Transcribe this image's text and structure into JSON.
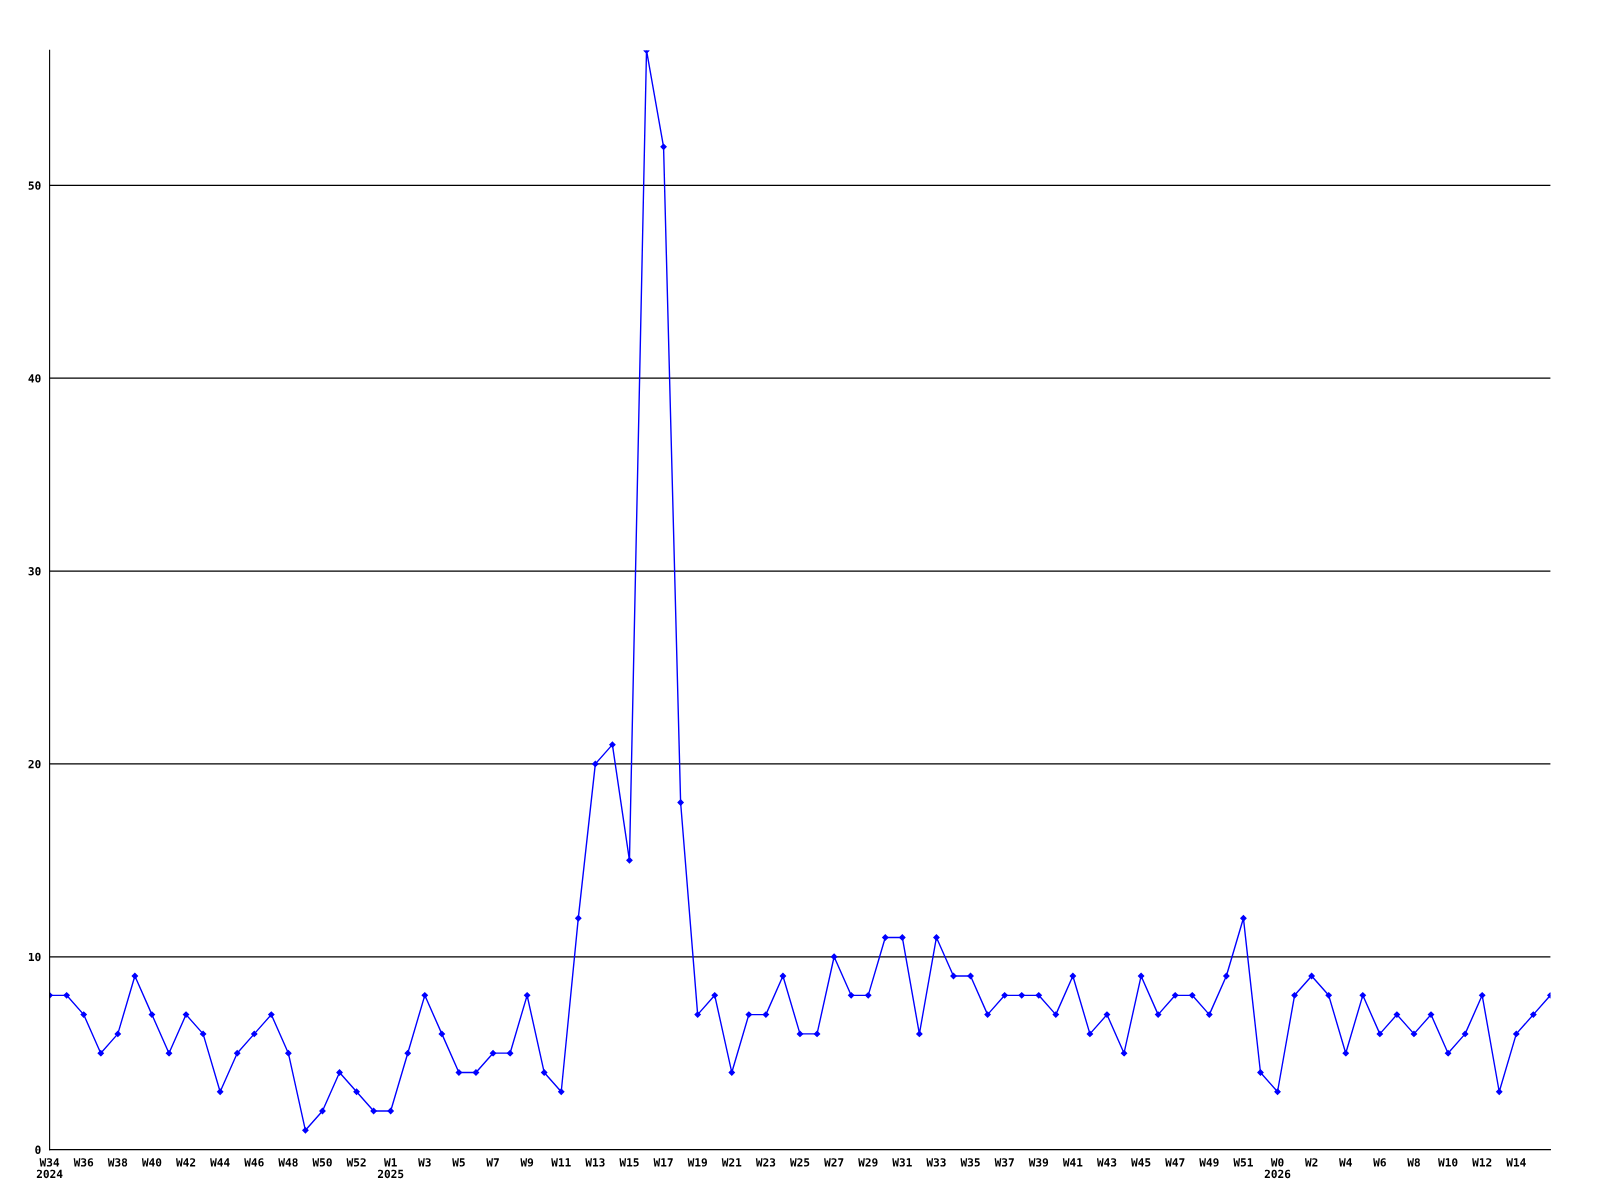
{
  "chart_data": {
    "type": "line",
    "categories": [
      "W34\n2024",
      null,
      "W36",
      null,
      "W38",
      null,
      "W40",
      null,
      "W42",
      null,
      "W44",
      null,
      "W46",
      null,
      "W48",
      null,
      "W50",
      null,
      "W52",
      null,
      "W1\n2025",
      null,
      "W3",
      null,
      "W5",
      null,
      "W7",
      null,
      "W9",
      null,
      "W11",
      null,
      "W13",
      null,
      "W15",
      null,
      "W17",
      null,
      "W19",
      null,
      "W21",
      null,
      "W23",
      null,
      "W25",
      null,
      "W27",
      null,
      "W29",
      null,
      "W31",
      null,
      "W33",
      null,
      "W35",
      null,
      "W37",
      null,
      "W39",
      null,
      "W41",
      null,
      "W43",
      null,
      "W45",
      null,
      "W47",
      null,
      "W49",
      null,
      "W51",
      null,
      "W0\n2026",
      null,
      "W2",
      null,
      "W4",
      null,
      "W6",
      null,
      "W8",
      null,
      "W10",
      null,
      "W12",
      null,
      "W14",
      null,
      null
    ],
    "series": [
      {
        "color": "#0000ff",
        "values": [
          8,
          8,
          7,
          5,
          6,
          9,
          7,
          5,
          7,
          6,
          3,
          5,
          6,
          7,
          5,
          1,
          2,
          4,
          3,
          2,
          2,
          5,
          8,
          6,
          4,
          4,
          5,
          5,
          8,
          4,
          3,
          12,
          20,
          21,
          15,
          57,
          52,
          18,
          7,
          8,
          4,
          7,
          7,
          9,
          6,
          6,
          10,
          8,
          8,
          11,
          11,
          6,
          11,
          9,
          9,
          7,
          8,
          8,
          8,
          7,
          9,
          6,
          7,
          5,
          9,
          7,
          8,
          8,
          7,
          9,
          12,
          4,
          3,
          8,
          9,
          8,
          5,
          8,
          6,
          7,
          6,
          7,
          5,
          6,
          8,
          3,
          6,
          7,
          8
        ]
      }
    ],
    "ylim": [
      0,
      57
    ],
    "yticks": [
      0,
      10,
      20,
      30,
      40,
      50
    ],
    "grid": "y",
    "marker": "diamond",
    "line_style": "solid"
  }
}
